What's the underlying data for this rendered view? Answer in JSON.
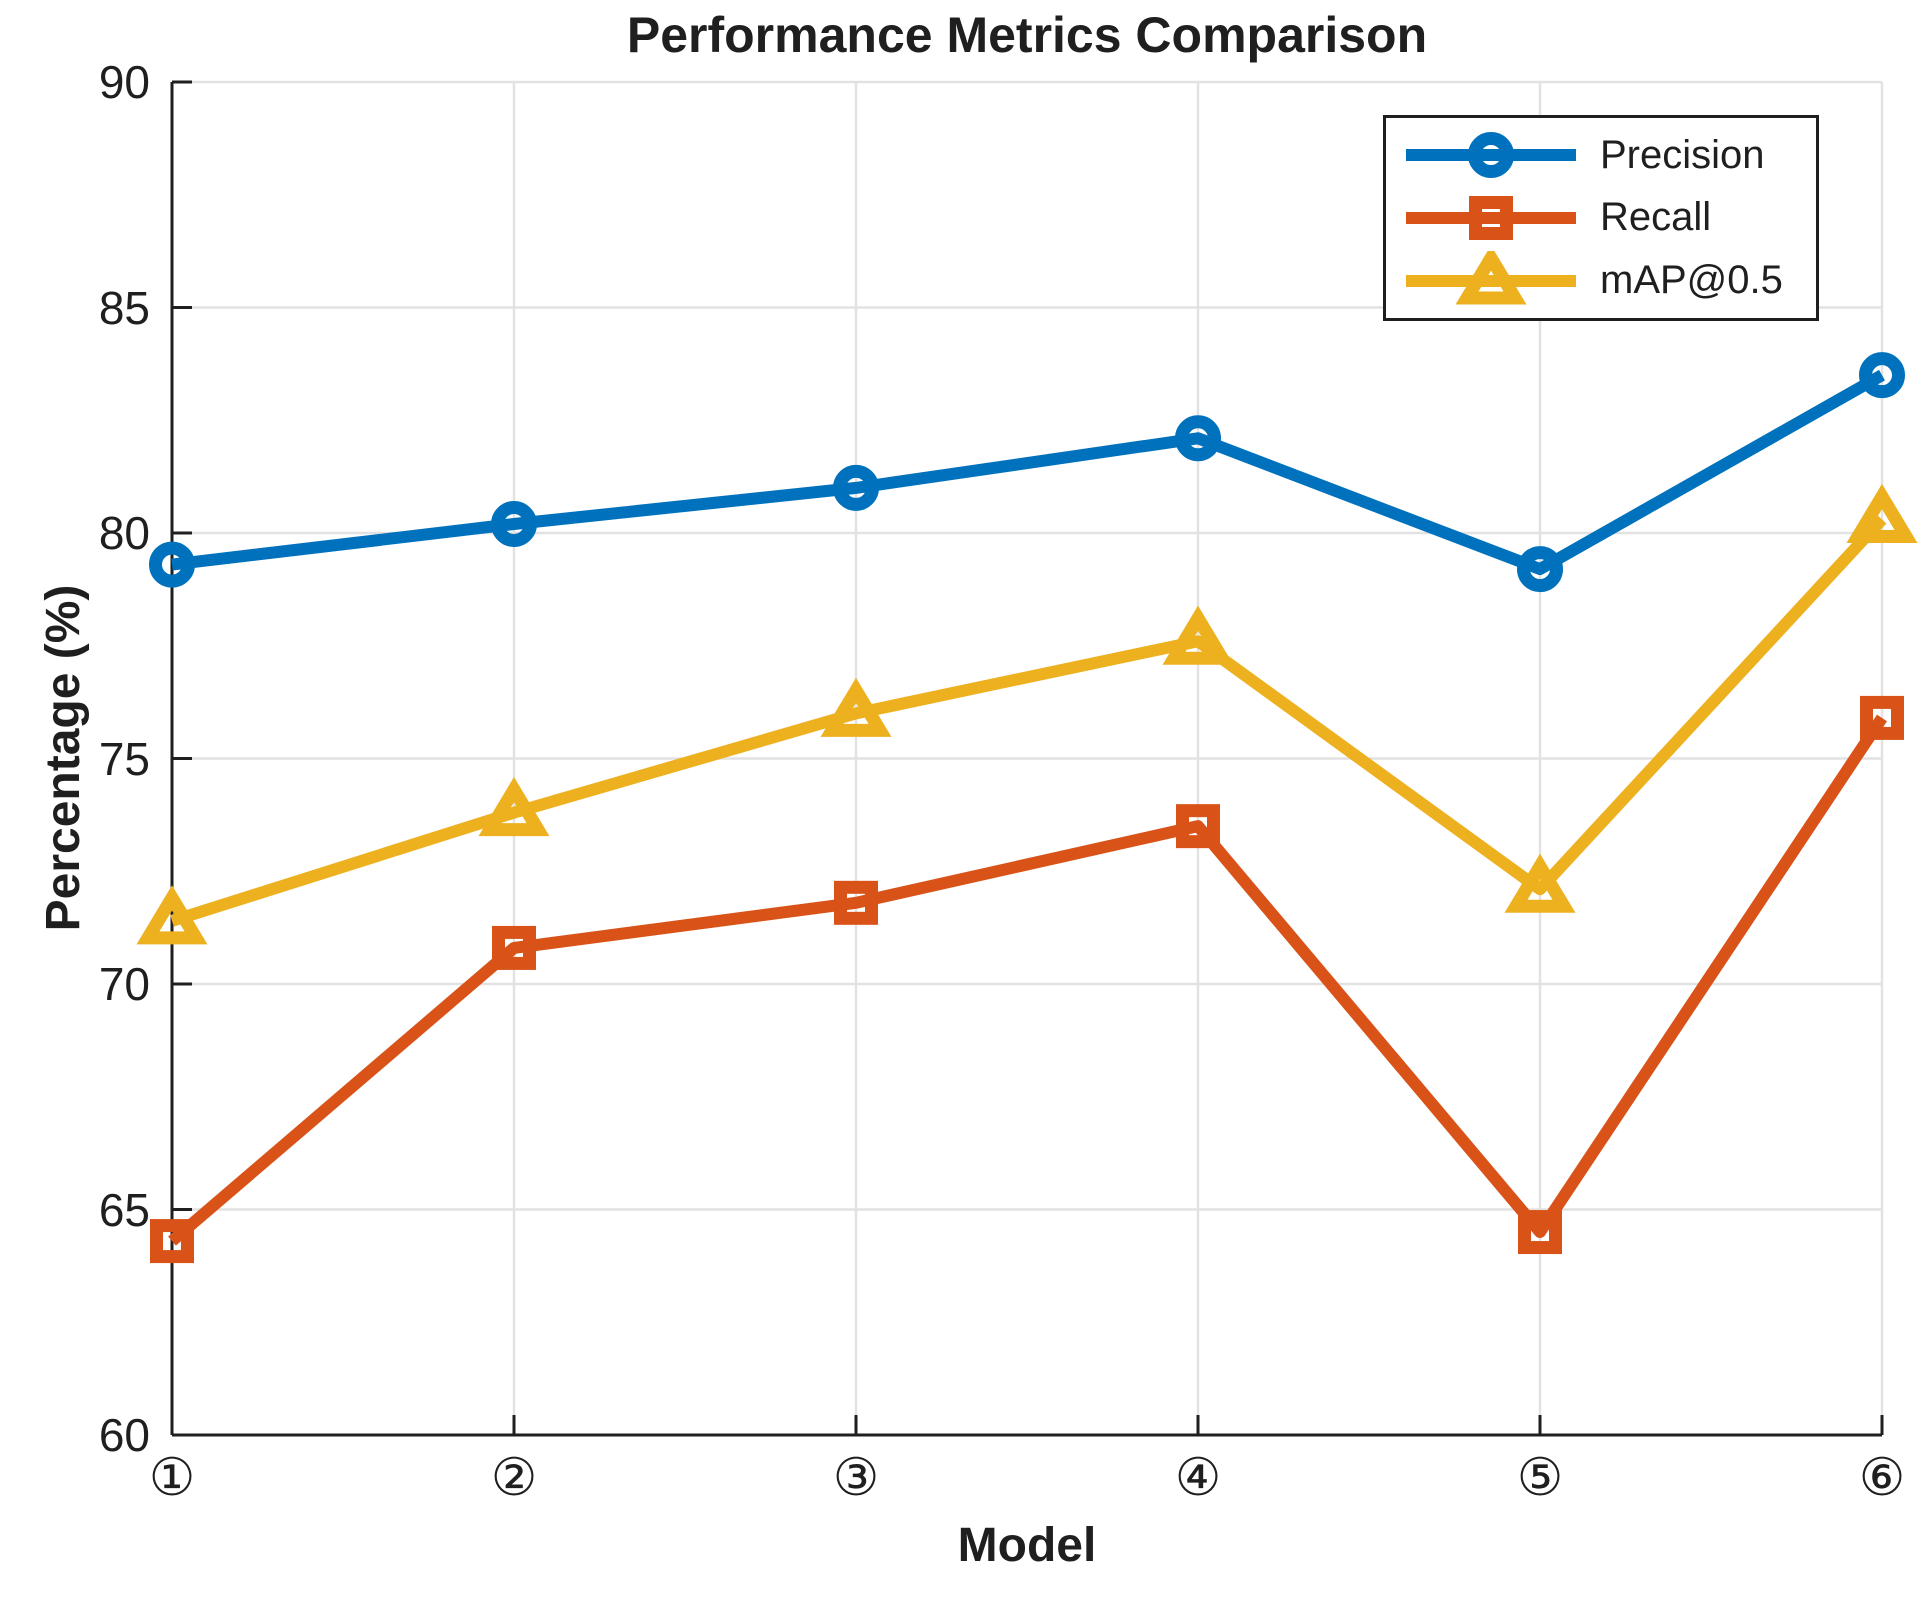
{
  "chart_data": {
    "type": "line",
    "title": "Performance Metrics Comparison",
    "xlabel": "Model",
    "ylabel": "Percentage (%)",
    "x": [
      1,
      2,
      3,
      4,
      5,
      6
    ],
    "x_tick_labels": [
      "①",
      "②",
      "③",
      "④",
      "⑤",
      "⑥"
    ],
    "yticks": [
      60,
      65,
      70,
      75,
      80,
      85,
      90
    ],
    "ylim": [
      60,
      90
    ],
    "grid": true,
    "legend_position": "top-right-inside",
    "axis_color": "#1f1f1f",
    "grid_color": "#e2e2e2",
    "series": [
      {
        "name": "Precision",
        "marker": "circle",
        "color": "#0072BD",
        "values": [
          79.3,
          80.2,
          81.0,
          82.1,
          79.2,
          83.5
        ]
      },
      {
        "name": "Recall",
        "marker": "square",
        "color": "#D95319",
        "values": [
          64.3,
          70.8,
          71.8,
          73.5,
          64.5,
          75.9
        ]
      },
      {
        "name": "mAP@0.5",
        "marker": "triangle",
        "color": "#EDB120",
        "values": [
          71.4,
          73.8,
          76.0,
          77.6,
          72.1,
          80.3
        ]
      }
    ]
  }
}
